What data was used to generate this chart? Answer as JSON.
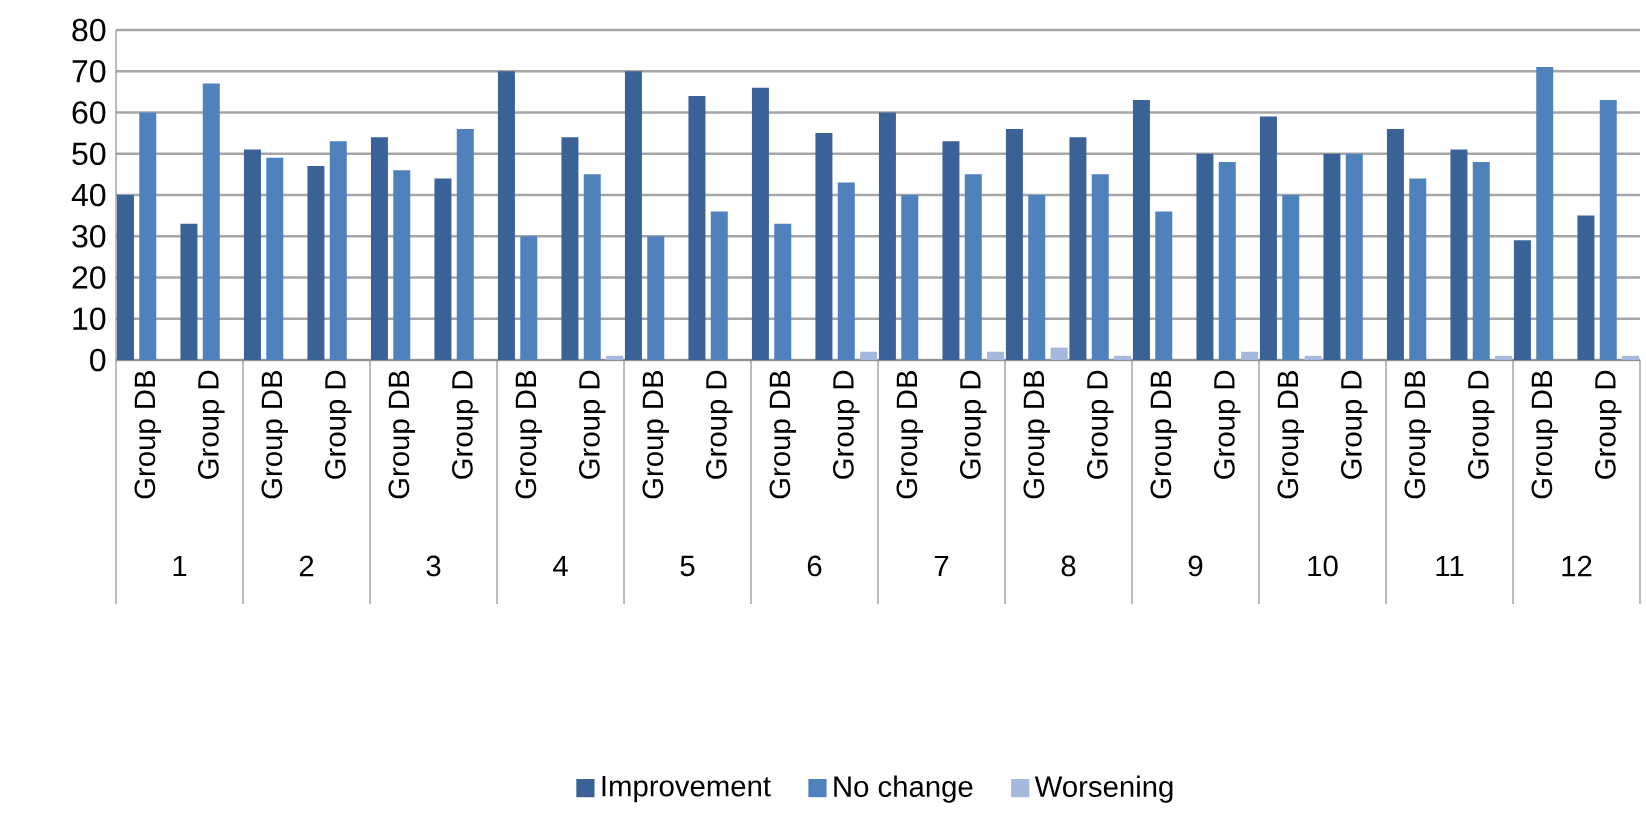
{
  "chart_data": {
    "type": "bar",
    "categories": [
      "Group DB",
      "Group D",
      "Group DB",
      "Group D",
      "Group DB",
      "Group D",
      "Group DB",
      "Group D",
      "Group DB",
      "Group D",
      "Group DB",
      "Group D",
      "Group DB",
      "Group D",
      "Group DB",
      "Group D",
      "Group DB",
      "Group D",
      "Group DB",
      "Group D",
      "Group DB",
      "Group D",
      "Group DB",
      "Group D"
    ],
    "series": [
      {
        "name": "Improvement",
        "color": "#3b6296",
        "values": [
          40,
          33,
          51,
          47,
          54,
          44,
          70,
          54,
          70,
          64,
          66,
          55,
          60,
          53,
          56,
          54,
          63,
          50,
          59,
          50,
          56,
          51,
          29,
          35
        ]
      },
      {
        "name": "No change",
        "color": "#4f81bd",
        "values": [
          60,
          67,
          49,
          53,
          46,
          56,
          30,
          45,
          30,
          36,
          33,
          43,
          40,
          45,
          40,
          45,
          36,
          48,
          40,
          50,
          44,
          48,
          71,
          63
        ]
      },
      {
        "name": "Worsening",
        "color": "#a5b8dd",
        "values": [
          0,
          0,
          0,
          0,
          0,
          0,
          0,
          1,
          0,
          0,
          0,
          2,
          0,
          2,
          3,
          1,
          0,
          2,
          1,
          0,
          0,
          1,
          0,
          1
        ]
      }
    ],
    "ylim": [
      0,
      80
    ],
    "yticks": [
      0,
      10,
      20,
      30,
      40,
      50,
      60,
      70,
      80
    ],
    "grid": "y",
    "legend": "bottom",
    "annotations": [
      "1",
      "2",
      "3",
      "4",
      "5",
      "6",
      "7",
      "8",
      "9",
      "10",
      "11",
      "12"
    ]
  }
}
